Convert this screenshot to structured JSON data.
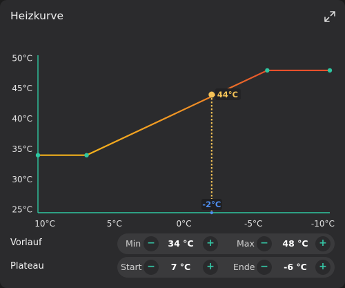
{
  "card": {
    "title": "Heizkurve",
    "expand_icon": "expand-arrows-icon"
  },
  "chart_data": {
    "type": "line",
    "title": "",
    "xlabel": "",
    "ylabel": "",
    "x_ticks": [
      "10°C",
      "5°C",
      "0°C",
      "-5°C",
      "-10°C"
    ],
    "x_tick_values": [
      10,
      5,
      0,
      -5,
      -10
    ],
    "y_ticks": [
      "50°C",
      "45°C",
      "40°C",
      "35°C",
      "30°C",
      "25°C"
    ],
    "y_tick_values": [
      50,
      45,
      40,
      35,
      30,
      25
    ],
    "xlim": [
      10.5,
      -10.5
    ],
    "ylim": [
      24.5,
      50.5
    ],
    "x_reversed": true,
    "series": [
      {
        "values_x": [
          10.5,
          7,
          -6,
          -10.5
        ],
        "values_y": [
          34,
          34,
          48,
          48
        ]
      }
    ],
    "control_points": [
      {
        "x": 10.5,
        "y": 34
      },
      {
        "x": 7,
        "y": 34
      },
      {
        "x": -6,
        "y": 48
      },
      {
        "x": -10.5,
        "y": 48
      }
    ],
    "current_point": {
      "x": -2,
      "y": 44,
      "label_y": "44°C",
      "label_x": "-2°C"
    },
    "colors": {
      "axis": "#2fc7a1",
      "line_start": "#f5b21c",
      "line_end": "#e8502b",
      "point": "#2fc7a1",
      "current": "#f3c257",
      "x_badge_text": "#4f8ef0"
    },
    "grid": false
  },
  "controls": {
    "vorlauf": {
      "label": "Vorlauf",
      "min_label": "Min",
      "min_value": "34 °C",
      "max_label": "Max",
      "max_value": "48 °C"
    },
    "plateau": {
      "label": "Plateau",
      "start_label": "Start",
      "start_value": "7 °C",
      "end_label": "Ende",
      "end_value": "-6 °C"
    },
    "minus": "−",
    "plus": "+"
  }
}
